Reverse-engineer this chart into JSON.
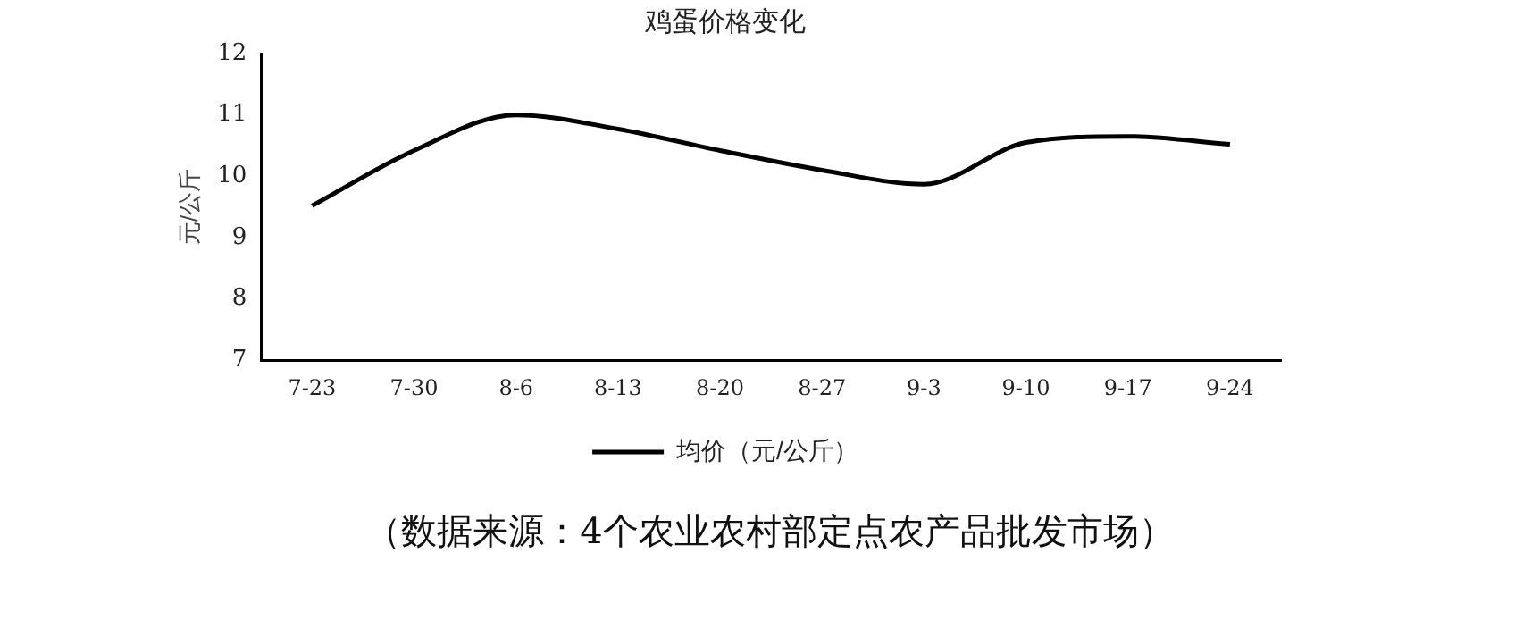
{
  "chart_data": {
    "type": "line",
    "title": "鸡蛋价格变化",
    "ylabel": "元/公斤",
    "categories": [
      "7-23",
      "7-30",
      "8-6",
      "8-13",
      "8-20",
      "8-27",
      "9-3",
      "9-10",
      "9-17",
      "9-24"
    ],
    "series": [
      {
        "name": "均价（元/公斤）",
        "color": "#000000",
        "values": [
          9.52,
          10.42,
          11.0,
          10.77,
          10.42,
          10.1,
          9.87,
          10.55,
          10.65,
          10.52
        ]
      }
    ],
    "ylim": [
      7,
      12
    ],
    "yticks": [
      7,
      8,
      9,
      10,
      11,
      12
    ],
    "grid": false,
    "legend": "bottom",
    "marker": "none",
    "line_style": "solid",
    "annotations": [
      "（数据来源：4个农业农村部定点农产品批发市场）"
    ]
  }
}
